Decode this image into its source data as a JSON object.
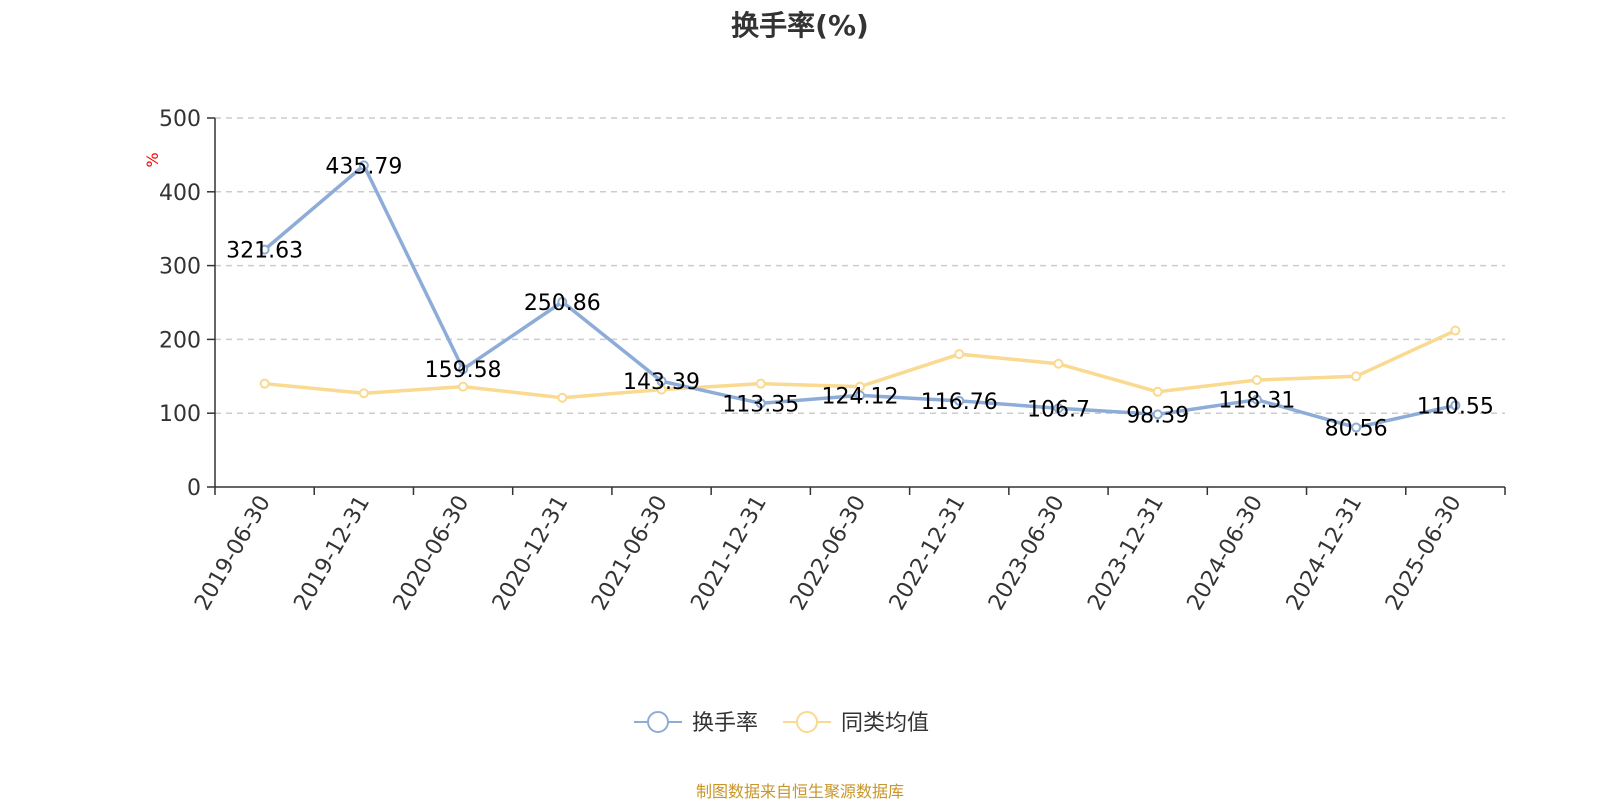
{
  "chart_data": {
    "type": "line",
    "title": "换手率(%)",
    "ylabel": "%",
    "xlabel": "",
    "ylim": [
      0,
      500
    ],
    "yticks": [
      0,
      100,
      200,
      300,
      400,
      500
    ],
    "grid": true,
    "legend_position": "bottom",
    "categories": [
      "2019-06-30",
      "2019-12-31",
      "2020-06-30",
      "2020-12-31",
      "2021-06-30",
      "2021-12-31",
      "2022-06-30",
      "2022-12-31",
      "2023-06-30",
      "2023-12-31",
      "2024-06-30",
      "2024-12-31",
      "2025-06-30"
    ],
    "series": [
      {
        "name": "换手率",
        "color": "#8eacd8",
        "values": [
          321.63,
          435.79,
          159.58,
          250.86,
          143.39,
          113.35,
          124.12,
          116.76,
          106.7,
          98.39,
          118.31,
          80.56,
          110.55
        ],
        "labels": [
          "321.63",
          "435.79",
          "159.58",
          "250.86",
          "143.39",
          "113.35",
          "124.12",
          "116.76",
          "106.7",
          "98.39",
          "118.31",
          "80.56",
          "110.55"
        ],
        "show_labels": true
      },
      {
        "name": "同类均值",
        "color": "#fad990",
        "values": [
          140,
          127,
          136,
          121,
          132,
          140,
          136,
          180,
          167,
          129,
          145,
          150,
          212
        ],
        "show_labels": false
      }
    ]
  },
  "footer": {
    "source": "制图数据来自恒生聚源数据库"
  },
  "colors": {
    "ylabel": "#ff0000",
    "source": "#c8962a"
  }
}
